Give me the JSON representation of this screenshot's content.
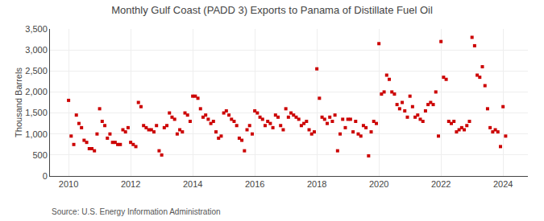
{
  "chart_data": {
    "type": "scatter",
    "title": "Monthly Gulf Coast (PADD 3) Exports to Panama of Distillate Fuel Oil",
    "ylabel": "Thousand Barrels",
    "annotations": [
      "Source: U.S. Energy Information Administration"
    ],
    "color": "#cc0000",
    "marker": "square",
    "grid": true,
    "xlim": [
      2009.4,
      2024.8
    ],
    "xticks": [
      2010,
      2012,
      2014,
      2016,
      2018,
      2020,
      2022,
      2024
    ],
    "ylim": [
      0,
      3500
    ],
    "yticks": [
      0,
      500,
      {
        "value": 1000,
        "label": "1,000"
      },
      {
        "value": 1500,
        "label": "1,500"
      },
      {
        "value": 2000,
        "label": "2,000"
      },
      {
        "value": 2500,
        "label": "2,500"
      },
      {
        "value": 3000,
        "label": "3,000"
      },
      {
        "value": 3500,
        "label": "3,500"
      }
    ],
    "x": [
      2010.0,
      2010.083,
      2010.167,
      2010.25,
      2010.333,
      2010.417,
      2010.5,
      2010.583,
      2010.667,
      2010.75,
      2010.833,
      2010.917,
      2011.0,
      2011.083,
      2011.167,
      2011.25,
      2011.333,
      2011.417,
      2011.5,
      2011.583,
      2011.667,
      2011.75,
      2011.833,
      2011.917,
      2012.0,
      2012.083,
      2012.167,
      2012.25,
      2012.333,
      2012.417,
      2012.5,
      2012.583,
      2012.667,
      2012.75,
      2012.833,
      2012.917,
      2013.0,
      2013.083,
      2013.167,
      2013.25,
      2013.333,
      2013.417,
      2013.5,
      2013.583,
      2013.667,
      2013.75,
      2013.833,
      2013.917,
      2014.0,
      2014.083,
      2014.167,
      2014.25,
      2014.333,
      2014.417,
      2014.5,
      2014.583,
      2014.667,
      2014.75,
      2014.833,
      2014.917,
      2015.0,
      2015.083,
      2015.167,
      2015.25,
      2015.333,
      2015.417,
      2015.5,
      2015.583,
      2015.667,
      2015.75,
      2015.833,
      2015.917,
      2016.0,
      2016.083,
      2016.167,
      2016.25,
      2016.333,
      2016.417,
      2016.5,
      2016.583,
      2016.667,
      2016.75,
      2016.833,
      2016.917,
      2017.0,
      2017.083,
      2017.167,
      2017.25,
      2017.333,
      2017.417,
      2017.5,
      2017.583,
      2017.667,
      2017.75,
      2017.833,
      2017.917,
      2018.0,
      2018.083,
      2018.167,
      2018.25,
      2018.333,
      2018.417,
      2018.5,
      2018.583,
      2018.667,
      2018.75,
      2018.833,
      2018.917,
      2019.0,
      2019.083,
      2019.167,
      2019.25,
      2019.333,
      2019.417,
      2019.5,
      2019.583,
      2019.667,
      2019.75,
      2019.833,
      2019.917,
      2020.0,
      2020.083,
      2020.167,
      2020.25,
      2020.333,
      2020.417,
      2020.5,
      2020.583,
      2020.667,
      2020.75,
      2020.833,
      2020.917,
      2021.0,
      2021.083,
      2021.167,
      2021.25,
      2021.333,
      2021.417,
      2021.5,
      2021.583,
      2021.667,
      2021.75,
      2021.833,
      2021.917,
      2022.0,
      2022.083,
      2022.167,
      2022.25,
      2022.333,
      2022.417,
      2022.5,
      2022.583,
      2022.667,
      2022.75,
      2022.833,
      2022.917,
      2023.0,
      2023.083,
      2023.167,
      2023.25,
      2023.333,
      2023.417,
      2023.5,
      2023.583,
      2023.667,
      2023.75,
      2023.833,
      2023.917,
      2024.0,
      2024.083
    ],
    "values": [
      1800,
      950,
      750,
      1450,
      1250,
      1150,
      850,
      800,
      650,
      650,
      600,
      1000,
      1600,
      1300,
      1200,
      900,
      1000,
      800,
      800,
      750,
      750,
      1100,
      1050,
      1150,
      800,
      750,
      700,
      1750,
      1650,
      1200,
      1150,
      1100,
      1100,
      1050,
      1200,
      600,
      500,
      1150,
      1200,
      1500,
      1400,
      1350,
      1000,
      1100,
      1050,
      1500,
      1450,
      1300,
      1900,
      1900,
      1850,
      1600,
      1400,
      1450,
      1350,
      1250,
      1300,
      1050,
      900,
      950,
      1500,
      1550,
      1450,
      1350,
      1300,
      1200,
      900,
      850,
      600,
      1100,
      1200,
      1000,
      1550,
      1500,
      1400,
      1350,
      1200,
      1300,
      1250,
      1150,
      1450,
      1400,
      1200,
      1100,
      1600,
      1400,
      1500,
      1450,
      1400,
      1350,
      1200,
      1250,
      1300,
      1100,
      1000,
      1050,
      2550,
      1850,
      1400,
      1350,
      1250,
      1400,
      1300,
      1450,
      600,
      1000,
      1350,
      1150,
      1350,
      1350,
      1050,
      1300,
      1000,
      950,
      1200,
      1150,
      480,
      1050,
      1300,
      1250,
      3150,
      1950,
      2000,
      2400,
      2300,
      2000,
      1950,
      1700,
      1600,
      1750,
      1550,
      1400,
      1900,
      1650,
      1400,
      1450,
      1350,
      1300,
      1550,
      1700,
      1750,
      1700,
      2000,
      950,
      3200,
      2350,
      2300,
      1300,
      1250,
      1300,
      1050,
      1100,
      1150,
      1100,
      1200,
      1300,
      3300,
      3100,
      2400,
      2350,
      2600,
      2150,
      1600,
      1150,
      1050,
      1100,
      1050,
      700,
      1650,
      950
    ]
  }
}
